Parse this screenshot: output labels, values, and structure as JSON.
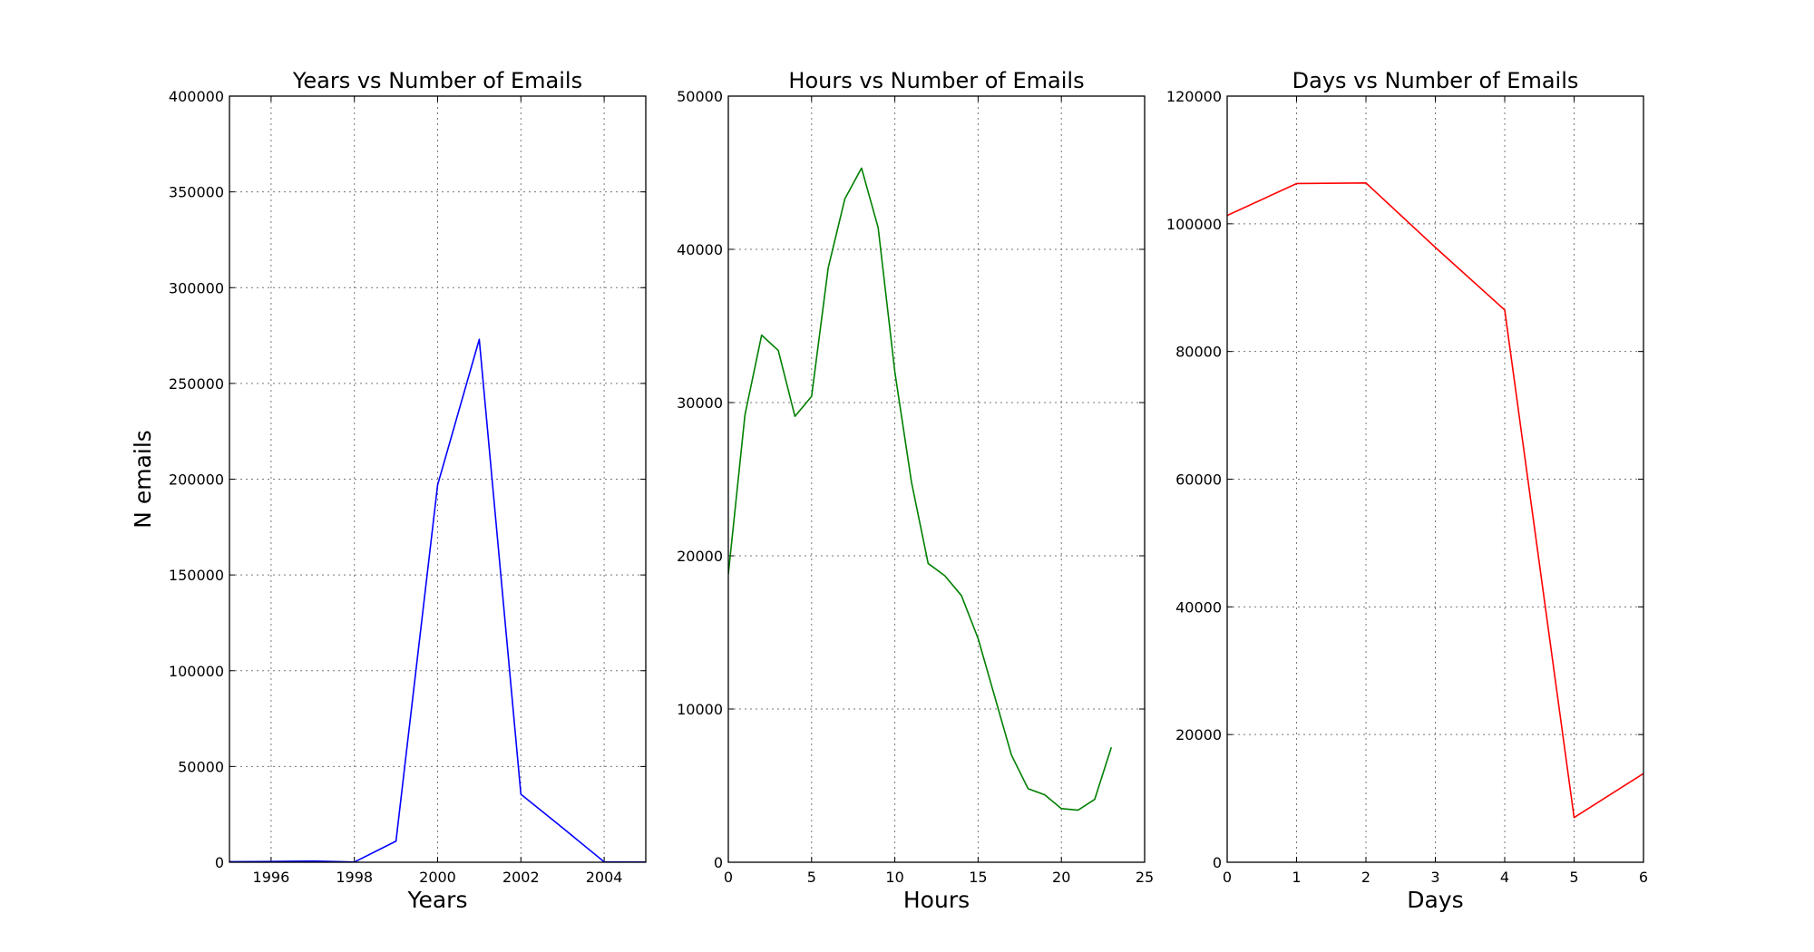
{
  "figure": {
    "background": "#ffffff"
  },
  "chart_data": [
    {
      "type": "line",
      "title": "Years vs Number of Emails",
      "xlabel": "Years",
      "ylabel": "N emails",
      "xlim": [
        1995,
        2005
      ],
      "ylim": [
        0,
        400000
      ],
      "xticks": [
        1996,
        1998,
        2000,
        2002,
        2004
      ],
      "yticks": [
        0,
        50000,
        100000,
        150000,
        200000,
        250000,
        300000,
        350000,
        400000
      ],
      "grid": true,
      "series": [
        {
          "color": "#0000ff",
          "x": [
            1995,
            1996,
            1997,
            1998,
            1999,
            2000,
            2001,
            2002,
            2003,
            2004,
            2005
          ],
          "y": [
            300,
            400,
            600,
            100,
            11000,
            197000,
            273000,
            35500,
            18000,
            200,
            100
          ]
        }
      ]
    },
    {
      "type": "line",
      "title": "Hours vs Number of Emails",
      "xlabel": "Hours",
      "ylabel": "",
      "xlim": [
        0,
        25
      ],
      "ylim": [
        0,
        50000
      ],
      "xticks": [
        0,
        5,
        10,
        15,
        20,
        25
      ],
      "yticks": [
        0,
        10000,
        20000,
        30000,
        40000,
        50000
      ],
      "grid": true,
      "series": [
        {
          "color": "#008000",
          "x": [
            0,
            1,
            2,
            3,
            4,
            5,
            6,
            7,
            8,
            9,
            10,
            11,
            12,
            13,
            14,
            15,
            16,
            17,
            18,
            19,
            20,
            21,
            22,
            23
          ],
          "y": [
            18800,
            29200,
            34400,
            33400,
            29100,
            30400,
            38800,
            43300,
            45300,
            41400,
            32000,
            24800,
            19500,
            18700,
            17400,
            14600,
            10800,
            7000,
            4800,
            4400,
            3500,
            3400,
            4100,
            7500
          ]
        }
      ]
    },
    {
      "type": "line",
      "title": "Days vs Number of Emails",
      "xlabel": "Days",
      "ylabel": "",
      "xlim": [
        0,
        6
      ],
      "ylim": [
        0,
        120000
      ],
      "xticks": [
        0,
        1,
        2,
        3,
        4,
        5,
        6
      ],
      "yticks": [
        0,
        20000,
        40000,
        60000,
        80000,
        100000,
        120000
      ],
      "grid": true,
      "series": [
        {
          "color": "#ff0000",
          "x": [
            0,
            1,
            2,
            3,
            4,
            5,
            6
          ],
          "y": [
            101300,
            106300,
            106400,
            96300,
            86500,
            7000,
            13900
          ]
        }
      ]
    }
  ]
}
